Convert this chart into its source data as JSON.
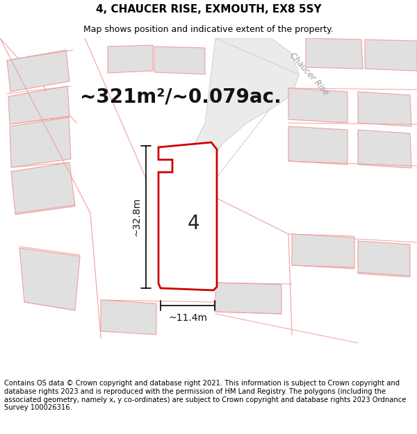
{
  "title_line1": "4, CHAUCER RISE, EXMOUTH, EX8 5SY",
  "title_line2": "Map shows position and indicative extent of the property.",
  "area_text": "~321m²/~0.079ac.",
  "label_number": "4",
  "dim_height": "~32.8m",
  "dim_width": "~11.4m",
  "street_label": "Chaucer Rise",
  "footer_text": "Contains OS data © Crown copyright and database right 2021. This information is subject to Crown copyright and database rights 2023 and is reproduced with the permission of HM Land Registry. The polygons (including the associated geometry, namely x, y co-ordinates) are subject to Crown copyright and database rights 2023 Ordnance Survey 100026316.",
  "bg_color": "#ffffff",
  "map_bg": "#ffffff",
  "plot_border": "#cc0000",
  "other_fill": "#e0e0e0",
  "other_border": "#f0a0a0",
  "title_fontsize": 11,
  "subtitle_fontsize": 9,
  "area_fontsize": 20,
  "dim_fontsize": 10,
  "footer_fontsize": 7.2
}
